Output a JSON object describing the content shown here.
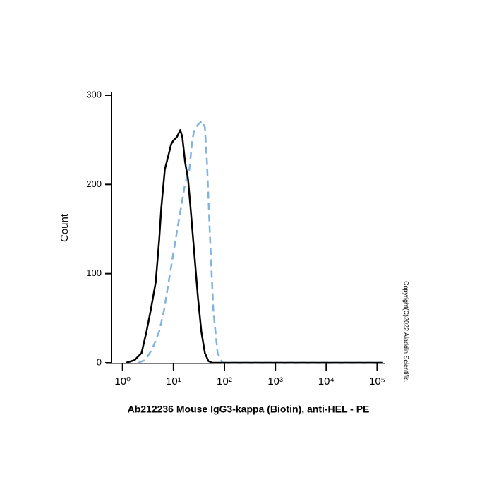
{
  "chart_data": {
    "type": "line",
    "xlabel": "Ab212236 Mouse IgG3-kappa (Biotin), anti-HEL - PE",
    "ylabel": "Count",
    "note": "Copyright(C)2022 Aladdin Scientific.",
    "xscale": "log",
    "xlim": [
      0.5,
      140000
    ],
    "xticks": [
      {
        "value": 1,
        "label": "10⁰"
      },
      {
        "value": 10,
        "label": "10¹"
      },
      {
        "value": 100,
        "label": "10²"
      },
      {
        "value": 1000,
        "label": "10³"
      },
      {
        "value": 10000,
        "label": "10⁴"
      },
      {
        "value": 100000,
        "label": "10⁵"
      }
    ],
    "ylim": [
      0,
      300
    ],
    "yticks": [
      0,
      100,
      200,
      300
    ],
    "series": [
      {
        "color": "#000000",
        "dash": false,
        "x": [
          1.17,
          1.72,
          2.36,
          2.95,
          3.57,
          4.46,
          5.23,
          5.75,
          6.76,
          7.66,
          8.97,
          9.87,
          11.6,
          13.6,
          14.9,
          16.9,
          19.3,
          21.9,
          25.7,
          30.1,
          35.2,
          41.3,
          48.4,
          56.8,
          130000
        ],
        "values": [
          0,
          3,
          11,
          35,
          59,
          90,
          138,
          173,
          217,
          229,
          245,
          249,
          253,
          261,
          253,
          225,
          206,
          170,
          122,
          74,
          35,
          11,
          2,
          0,
          0
        ]
      },
      {
        "color": "#7fb3e0",
        "dash": true,
        "x": [
          2.01,
          2.77,
          3.8,
          5.23,
          6.53,
          8.42,
          10.9,
          13.6,
          16.9,
          20.5,
          23.3,
          25.6,
          30.1,
          36.4,
          41.3,
          45.4,
          51.6,
          60.5,
          73.3,
          91.4,
          130000
        ],
        "values": [
          0,
          3,
          15,
          35,
          59,
          98,
          137,
          169,
          201,
          217,
          249,
          261,
          267,
          271,
          264,
          225,
          146,
          59,
          11,
          0,
          0
        ]
      }
    ]
  }
}
